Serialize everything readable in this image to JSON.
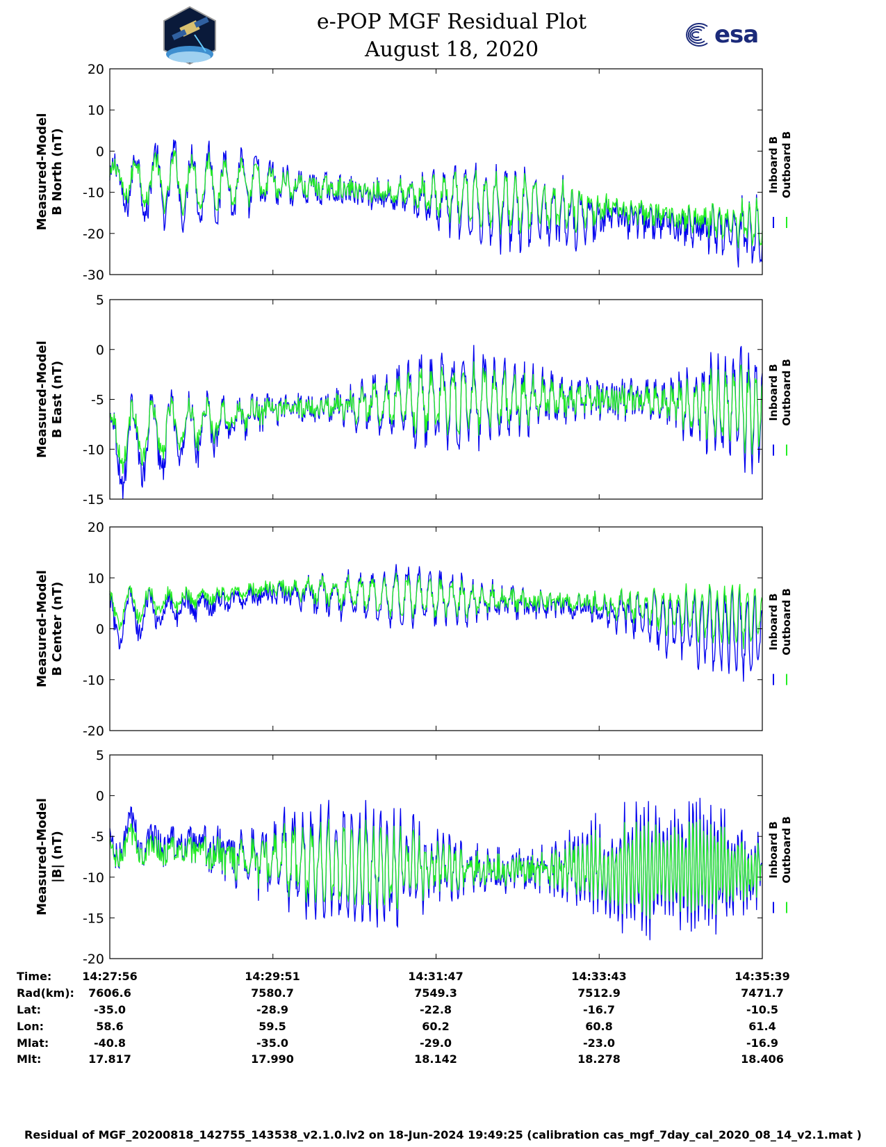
{
  "header": {
    "title_line1": "e-POP MGF Residual Plot",
    "title_line2": "August 18, 2020",
    "logo_left": "cassiope-mission-logo",
    "logo_right_text": "esa"
  },
  "colors": {
    "inboard": "#0000ee",
    "outboard": "#22ee22",
    "axis": "#000000"
  },
  "chart_data": [
    {
      "type": "line",
      "ylabel": [
        "Measured-Model",
        "B North (nT)"
      ],
      "ylim": [
        -30,
        20
      ],
      "yticks": [
        20,
        10,
        0,
        -10,
        -20,
        -30
      ],
      "legend": [
        "Inboard B",
        "Outboard B"
      ],
      "legend_placement": "right",
      "x": [
        "14:27:56",
        "14:29:51",
        "14:31:47",
        "14:33:43",
        "14:35:39"
      ],
      "series": [
        {
          "name": "Inboard B",
          "values": [
            -8,
            -8,
            -12,
            -16,
            -20
          ]
        },
        {
          "name": "Outboard B",
          "values": [
            -7,
            -8,
            -11,
            -14,
            -18
          ]
        }
      ]
    },
    {
      "type": "line",
      "ylabel": [
        "Measured-Model",
        "B East (nT)"
      ],
      "ylim": [
        -15,
        5
      ],
      "yticks": [
        5,
        0,
        -5,
        -10,
        -15
      ],
      "legend": [
        "Inboard B",
        "Outboard B"
      ],
      "legend_placement": "right",
      "x": [
        "14:27:56",
        "14:29:51",
        "14:31:47",
        "14:33:43",
        "14:35:39"
      ],
      "series": [
        {
          "name": "Inboard B",
          "values": [
            -10,
            -6,
            -5,
            -5,
            -6
          ]
        },
        {
          "name": "Outboard B",
          "values": [
            -9,
            -6,
            -5,
            -5,
            -6
          ]
        }
      ]
    },
    {
      "type": "line",
      "ylabel": [
        "Measured-Model",
        "B Center (nT)"
      ],
      "ylim": [
        -20,
        20
      ],
      "yticks": [
        20,
        10,
        0,
        -10,
        -20
      ],
      "legend": [
        "Inboard B",
        "Outboard B"
      ],
      "legend_placement": "right",
      "x": [
        "14:27:56",
        "14:29:51",
        "14:31:47",
        "14:33:43",
        "14:35:39"
      ],
      "series": [
        {
          "name": "Inboard B",
          "values": [
            2,
            7,
            6,
            4,
            -2
          ]
        },
        {
          "name": "Outboard B",
          "values": [
            4,
            8,
            6,
            5,
            2
          ]
        }
      ]
    },
    {
      "type": "line",
      "ylabel": [
        "Measured-Model",
        "|B| (nT)"
      ],
      "ylim": [
        -20,
        5
      ],
      "yticks": [
        5,
        0,
        -5,
        -10,
        -15,
        -20
      ],
      "legend": [
        "Inboard B",
        "Outboard B"
      ],
      "legend_placement": "right",
      "x": [
        "14:27:56",
        "14:29:51",
        "14:31:47",
        "14:33:43",
        "14:35:39"
      ],
      "series": [
        {
          "name": "Inboard B",
          "values": [
            -5,
            -8,
            -9,
            -9,
            -9
          ]
        },
        {
          "name": "Outboard B",
          "values": [
            -6,
            -8,
            -9,
            -9,
            -9
          ]
        }
      ]
    }
  ],
  "ephemeris": {
    "labels": [
      "Time:",
      "Rad(km):",
      "Lat:",
      "Lon:",
      "Mlat:",
      "Mlt:"
    ],
    "columns": [
      [
        "14:27:56",
        "7606.6",
        "-35.0",
        "58.6",
        "-40.8",
        "17.817"
      ],
      [
        "14:29:51",
        "7580.7",
        "-28.9",
        "59.5",
        "-35.0",
        "17.990"
      ],
      [
        "14:31:47",
        "7549.3",
        "-22.8",
        "60.2",
        "-29.0",
        "18.142"
      ],
      [
        "14:33:43",
        "7512.9",
        "-16.7",
        "60.8",
        "-23.0",
        "18.278"
      ],
      [
        "14:35:39",
        "7471.7",
        "-10.5",
        "61.4",
        "-16.9",
        "18.406"
      ]
    ]
  },
  "footer": "Residual of MGF_20200818_142755_143538_v2.1.0.lv2 on 18-Jun-2024 19:49:25 (calibration cas_mgf_7day_cal_2020_08_14_v2.1.mat )"
}
